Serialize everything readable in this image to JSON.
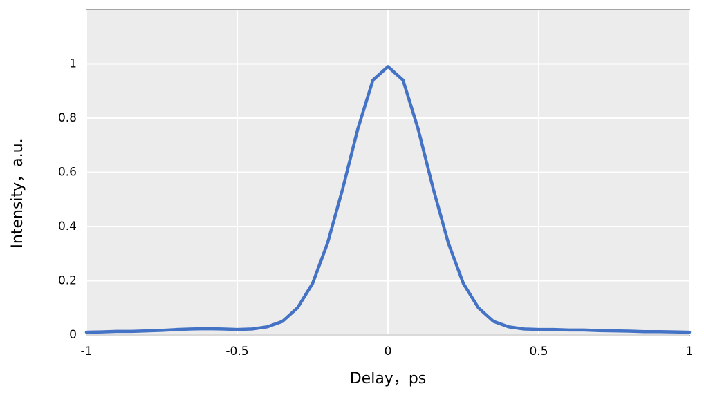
{
  "chart_data": {
    "type": "line",
    "x_label": "Delay，ps",
    "y_label": "Intensity，a.u.",
    "x": [
      -1,
      -0.95,
      -0.9,
      -0.85,
      -0.8,
      -0.75,
      -0.7,
      -0.65,
      -0.6,
      -0.55,
      -0.5,
      -0.45,
      -0.4,
      -0.35,
      -0.3,
      -0.25,
      -0.2,
      -0.15,
      -0.1,
      -0.05,
      0,
      0.05,
      0.1,
      0.15,
      0.2,
      0.25,
      0.3,
      0.35,
      0.4,
      0.45,
      0.5,
      0.55,
      0.6,
      0.65,
      0.7,
      0.75,
      0.8,
      0.85,
      0.9,
      0.95,
      1
    ],
    "series": [
      {
        "name": "Intensity",
        "color": "#4472c4",
        "values": [
          0.01,
          0.011,
          0.013,
          0.013,
          0.015,
          0.017,
          0.02,
          0.022,
          0.023,
          0.022,
          0.02,
          0.022,
          0.03,
          0.05,
          0.1,
          0.19,
          0.34,
          0.54,
          0.76,
          0.94,
          0.99,
          0.94,
          0.76,
          0.54,
          0.34,
          0.19,
          0.1,
          0.05,
          0.03,
          0.022,
          0.02,
          0.02,
          0.018,
          0.018,
          0.016,
          0.015,
          0.014,
          0.012,
          0.012,
          0.011,
          0.01
        ]
      }
    ],
    "xlim": [
      -1,
      1
    ],
    "xticks": [
      -1,
      -0.5,
      0,
      0.5,
      1
    ],
    "ylim": [
      0,
      1.2
    ],
    "yticks": [
      0,
      0.2,
      0.4,
      0.6,
      0.8,
      1
    ],
    "grid": true
  }
}
